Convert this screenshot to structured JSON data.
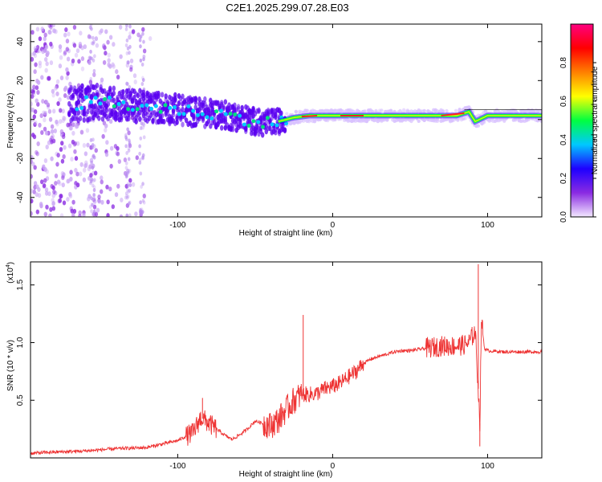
{
  "figure": {
    "title": "C2E1.2025.299.07.28.E03"
  },
  "chart_data": [
    {
      "type": "heatmap",
      "xlabel": "Height of straight line (km)",
      "ylabel": "Frequency (Hz)",
      "xlim": [
        -195,
        135
      ],
      "ylim": [
        -50,
        49
      ],
      "xticks": [
        -100,
        0,
        100
      ],
      "xtick_labels": [
        "-100",
        "0",
        "100"
      ],
      "yticks": [
        -40,
        -20,
        0,
        20,
        40
      ],
      "ytick_labels": [
        "-40",
        "-20",
        "0",
        "20",
        "40"
      ],
      "grid": false,
      "colorbar": {
        "label": "Normalized spectral amplitude",
        "range": [
          0,
          1
        ],
        "ticks": [
          0.0,
          0.2,
          0.4,
          0.6,
          0.8
        ],
        "tick_labels": [
          "0.0",
          "0.2",
          "0.4",
          "0.6",
          "0.8"
        ],
        "colors": [
          "#f3e8ff",
          "#8a2be2",
          "#1e00ff",
          "#00c8ff",
          "#00ff40",
          "#ffff00",
          "#ff8000",
          "#ff0000",
          "#ff0080"
        ]
      },
      "ridge": {
        "x": [
          -168,
          -150,
          -130,
          -110,
          -90,
          -75,
          -60,
          -45,
          -35,
          -25,
          -15,
          0,
          20,
          50,
          80,
          88,
          92,
          100,
          120,
          135
        ],
        "y": [
          8,
          9,
          7,
          6,
          4,
          3,
          1,
          -2,
          -1,
          1,
          2,
          2,
          2,
          2,
          2,
          4,
          -1,
          2,
          2,
          2
        ]
      }
    },
    {
      "type": "line",
      "xlabel": "Height of straight line (km)",
      "ylabel": "SNR (10 * v/v)",
      "yscale_label": "(x10",
      "yscale_exponent": "4",
      "xlim": [
        -195,
        135
      ],
      "ylim": [
        0,
        1.7
      ],
      "xticks": [
        -100,
        0,
        100
      ],
      "xtick_labels": [
        "-100",
        "0",
        "100"
      ],
      "yticks": [
        0.5,
        1.0,
        1.5
      ],
      "ytick_labels": [
        "0.5",
        "1.0",
        "1.5"
      ],
      "grid": false,
      "series": [
        {
          "color": "#ee3333",
          "x": [
            -195,
            -180,
            -160,
            -140,
            -120,
            -110,
            -100,
            -90,
            -85,
            -80,
            -75,
            -70,
            -65,
            -60,
            -55,
            -50,
            -45,
            -40,
            -35,
            -30,
            -25,
            -20,
            -15,
            -10,
            -5,
            0,
            5,
            10,
            15,
            20,
            25,
            30,
            35,
            40,
            45,
            50,
            55,
            60,
            65,
            70,
            75,
            80,
            85,
            88,
            90,
            92,
            94,
            95,
            96,
            98,
            100,
            110,
            120,
            135
          ],
          "y": [
            0.04,
            0.05,
            0.06,
            0.08,
            0.09,
            0.12,
            0.15,
            0.22,
            0.35,
            0.3,
            0.25,
            0.2,
            0.16,
            0.2,
            0.25,
            0.32,
            0.3,
            0.28,
            0.33,
            0.42,
            0.5,
            0.55,
            0.55,
            0.56,
            0.6,
            0.62,
            0.65,
            0.7,
            0.75,
            0.82,
            0.86,
            0.88,
            0.9,
            0.92,
            0.93,
            0.93,
            0.94,
            0.95,
            0.96,
            0.97,
            0.97,
            0.97,
            0.98,
            1.0,
            1.05,
            1.1,
            0.6,
            0.3,
            1.2,
            0.95,
            0.93,
            0.92,
            0.92,
            0.92
          ]
        }
      ],
      "spikes": [
        {
          "x": -84,
          "y": 0.52
        },
        {
          "x": -19,
          "y": 1.24
        },
        {
          "x": 94,
          "y": 1.68
        },
        {
          "x": 95,
          "y": 0.1
        }
      ]
    }
  ]
}
